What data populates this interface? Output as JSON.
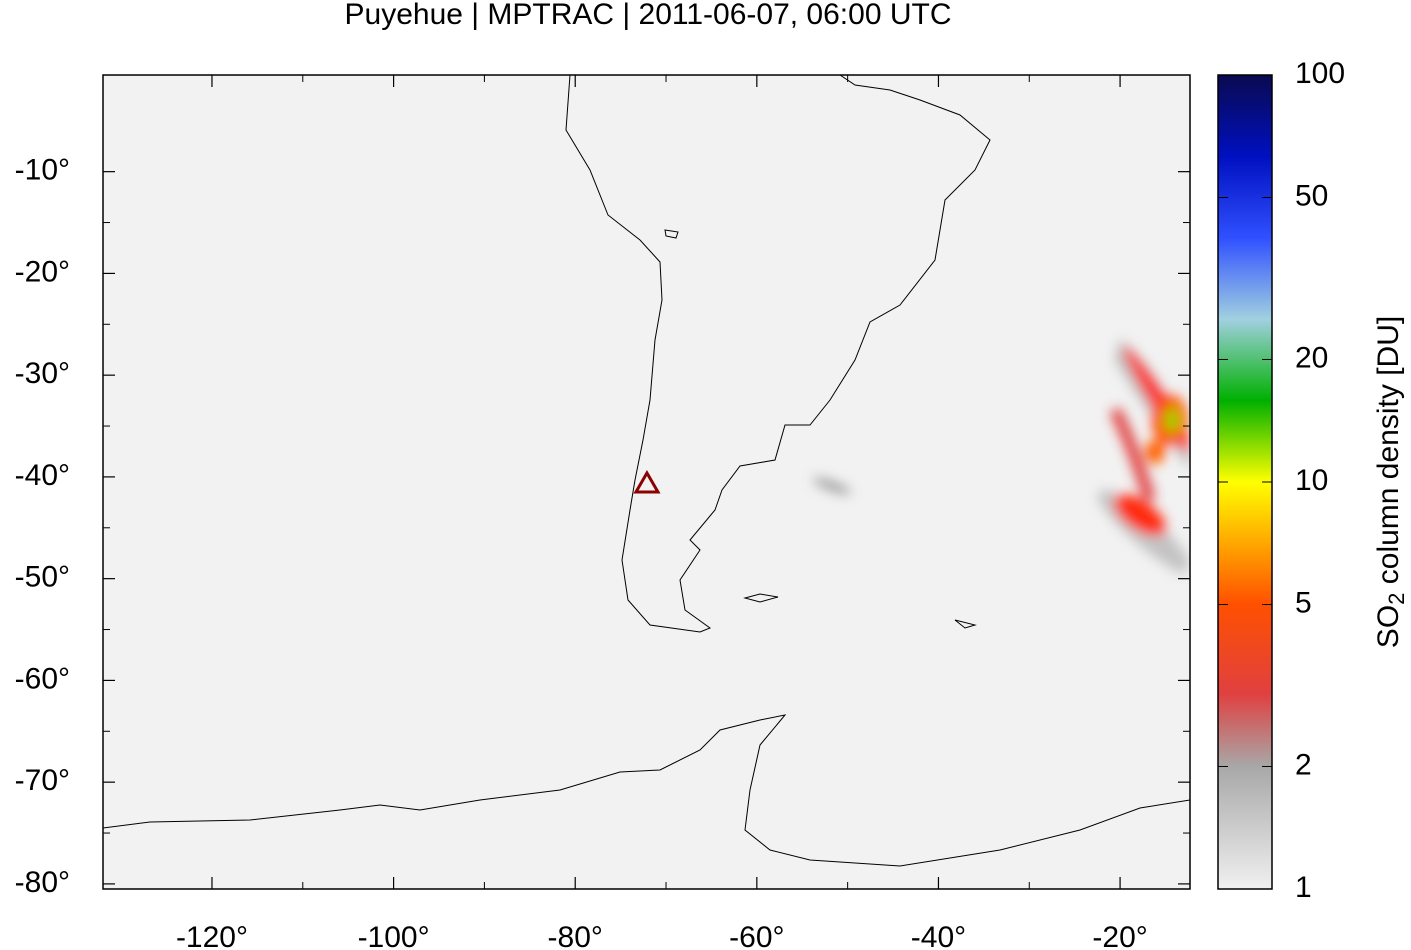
{
  "chart_data": {
    "type": "map",
    "title": "Puyehue | MPTRAC | 2011-06-07, 06:00 UTC",
    "xlim": [
      -132,
      -12.3
    ],
    "ylim": [
      -80.5,
      -0.5
    ],
    "xticks": [
      {
        "value": -120,
        "label": "-120°"
      },
      {
        "value": -100,
        "label": "-100°"
      },
      {
        "value": -80,
        "label": "-80°"
      },
      {
        "value": -60,
        "label": "-60°"
      },
      {
        "value": -40,
        "label": "-40°"
      },
      {
        "value": -20,
        "label": "-20°"
      }
    ],
    "yticks": [
      {
        "value": -10,
        "label": "-10°"
      },
      {
        "value": -20,
        "label": "-20°"
      },
      {
        "value": -30,
        "label": "-30°"
      },
      {
        "value": -40,
        "label": "-40°"
      },
      {
        "value": -50,
        "label": "-50°"
      },
      {
        "value": -60,
        "label": "-60°"
      },
      {
        "value": -70,
        "label": "-70°"
      },
      {
        "value": -80,
        "label": "-80°"
      }
    ],
    "volcano": {
      "lon": -72.1,
      "lat": -40.6,
      "color": "#8b0000"
    },
    "colorbar": {
      "log_scale": true,
      "lim": [
        1,
        100
      ],
      "ticks": [
        1,
        2,
        5,
        10,
        20,
        50,
        100
      ],
      "label": [
        "SO",
        "2",
        " column density [DU]"
      ]
    }
  }
}
